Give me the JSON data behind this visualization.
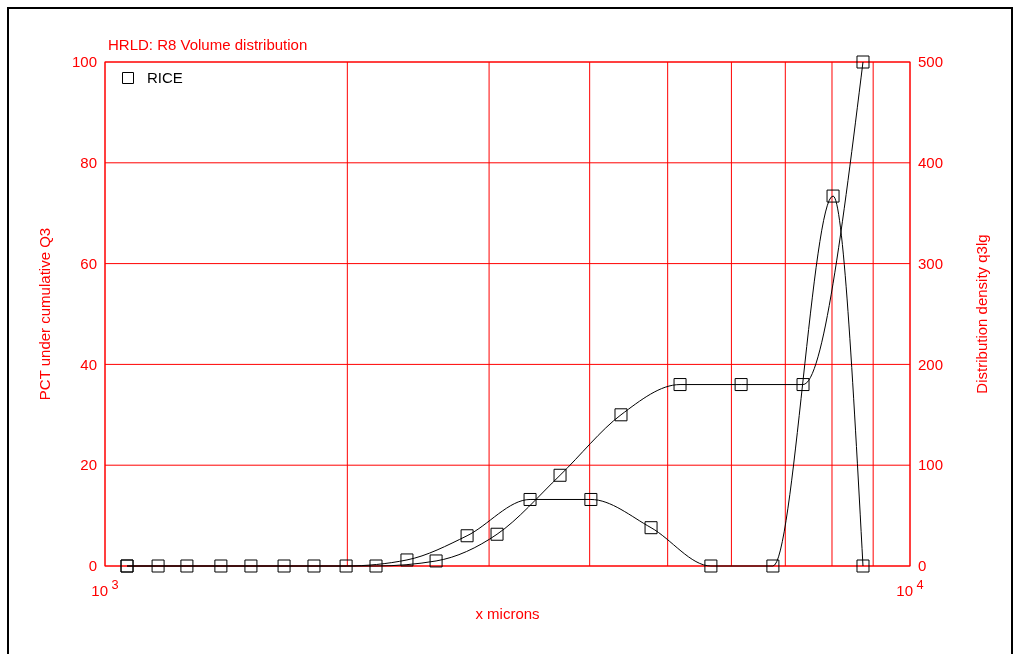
{
  "chart_data": {
    "type": "line",
    "title": "HRLD: R8 Volume distribution",
    "xlabel": "x microns",
    "ylabel": "PCT under cumulative Q3",
    "y2label": "Distribution density q3lg",
    "log": "x",
    "grid": true,
    "legend": "top left",
    "marker": "square",
    "line_style": "solid",
    "xlim": [
      1000,
      10000
    ],
    "xticks": [
      {
        "value": 1000,
        "label": "10$^{3}$"
      },
      {
        "value": 2000,
        "label": null
      },
      {
        "value": 3000,
        "label": null
      },
      {
        "value": 4000,
        "label": null
      },
      {
        "value": 5000,
        "label": null
      },
      {
        "value": 6000,
        "label": null
      },
      {
        "value": 7000,
        "label": null
      },
      {
        "value": 8000,
        "label": null
      },
      {
        "value": 9000,
        "label": null
      },
      {
        "value": 10000,
        "label": "10$^{4}$"
      }
    ],
    "ylim": [
      0,
      100
    ],
    "yticks": [
      0,
      20,
      40,
      60,
      80,
      100
    ],
    "y2lim": [
      0,
      500
    ],
    "y2ticks": [
      0,
      100,
      200,
      300,
      400,
      500
    ],
    "series": [
      {
        "name": "RICE",
        "color": "#000000",
        "x": [
          1065,
          1264,
          1518,
          1818,
          2171,
          2578,
          3069,
          3675,
          4375,
          5180,
          6169,
          7364,
          8742
        ],
        "values": [
          0,
          0,
          0,
          0,
          0,
          1,
          6.3,
          18,
          30,
          36,
          36,
          36,
          100
        ]
      },
      {
        "color": "#000000",
        "axis": "y2",
        "x": [
          1065,
          1164,
          1393,
          1669,
          1993,
          2372,
          2817,
          3373,
          4014,
          4768,
          5658,
          6756,
          8024,
          8742
        ],
        "values": [
          0,
          0,
          0,
          0,
          0,
          6,
          30,
          66,
          66,
          38,
          0,
          0,
          367,
          0
        ]
      }
    ]
  }
}
